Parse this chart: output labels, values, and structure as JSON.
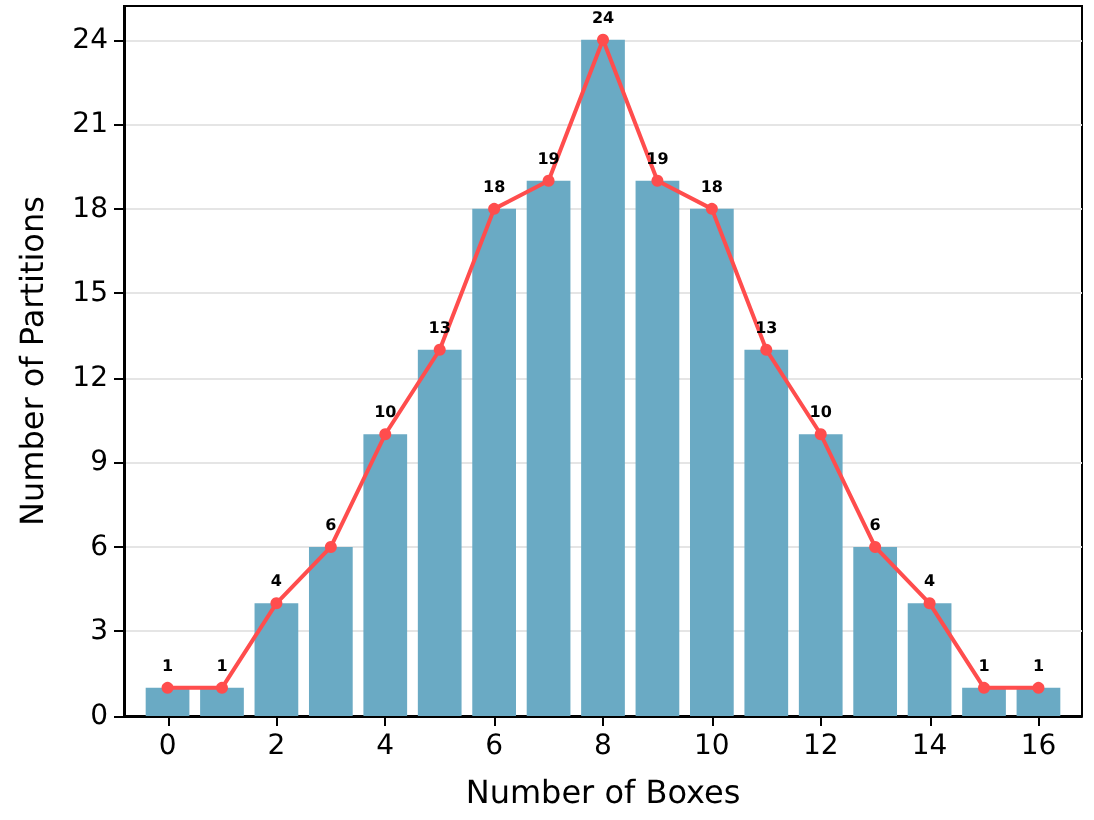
{
  "chart_data": {
    "type": "bar",
    "xlabel": "Number of Boxes",
    "ylabel": "Number of Partitions",
    "x": [
      0,
      1,
      2,
      3,
      4,
      5,
      6,
      7,
      8,
      9,
      10,
      11,
      12,
      13,
      14,
      15,
      16
    ],
    "series": [
      {
        "color": "#6aaac4",
        "values": [
          1,
          1,
          4,
          6,
          10,
          13,
          18,
          19,
          24,
          19,
          18,
          13,
          10,
          6,
          4,
          1,
          1
        ]
      },
      {
        "type": "line",
        "color": "#ff4d4d",
        "values": [
          1,
          1,
          4,
          6,
          10,
          13,
          18,
          19,
          24,
          19,
          18,
          13,
          10,
          6,
          4,
          1,
          1
        ],
        "marker": "circle",
        "line_style": "solid",
        "value_labels": [
          "1",
          "1",
          "4",
          "6",
          "10",
          "13",
          "18",
          "19",
          "24",
          "19",
          "18",
          "13",
          "10",
          "6",
          "4",
          "1",
          "1"
        ]
      }
    ],
    "xlim": [
      -0.8,
      16.8
    ],
    "xticks": [
      0,
      2,
      4,
      6,
      8,
      10,
      12,
      14,
      16
    ],
    "ylim": [
      0,
      25.2
    ],
    "yticks": [
      0,
      3,
      6,
      9,
      12,
      15,
      18,
      21,
      24
    ],
    "grid": "y"
  }
}
